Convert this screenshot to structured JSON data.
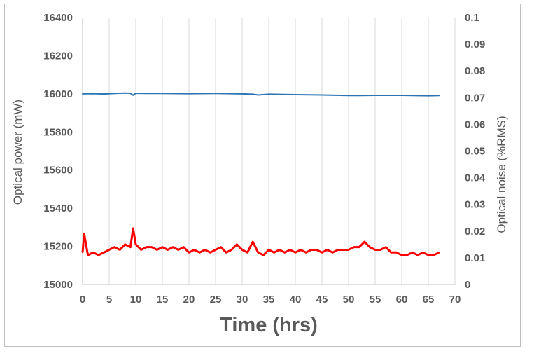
{
  "chart_data": {
    "type": "line",
    "title": "",
    "xlabel": "Time (hrs)",
    "ylabel_left": "Optical power (mW)",
    "ylabel_right": "Optical noise (%RMS)",
    "xlim": [
      0,
      70
    ],
    "ylim_left": [
      15000,
      16400
    ],
    "ylim_right": [
      0,
      0.1
    ],
    "x_ticks": [
      "0",
      "5",
      "10",
      "15",
      "20",
      "25",
      "30",
      "35",
      "40",
      "45",
      "50",
      "55",
      "60",
      "65",
      "70"
    ],
    "y_left_ticks": [
      "15000",
      "15200",
      "15400",
      "15600",
      "15800",
      "16000",
      "16200",
      "16400"
    ],
    "y_right_ticks": [
      "0",
      "0.01",
      "0.02",
      "0.03",
      "0.04",
      "0.05",
      "0.06",
      "0.07",
      "0.08",
      "0.09",
      "0.1"
    ],
    "grid": "vertical",
    "legend": "none",
    "series": [
      {
        "axis": "left",
        "color": "#2e75b6",
        "x": [
          0,
          2,
          4,
          6,
          8,
          9,
          9.5,
          10,
          12,
          15,
          20,
          25,
          30,
          32,
          33,
          35,
          40,
          45,
          50,
          52,
          55,
          60,
          65,
          67
        ],
        "y": [
          16000,
          16001,
          15999,
          16002,
          16004,
          16003,
          15993,
          16003,
          16002,
          16002,
          16001,
          16002,
          16000,
          15998,
          15994,
          15998,
          15996,
          15994,
          15991,
          15991,
          15992,
          15992,
          15990,
          15991
        ]
      },
      {
        "axis": "right",
        "color": "#ff0000",
        "x": [
          0,
          0.3,
          1,
          2,
          3,
          4,
          5,
          6,
          7,
          8,
          9,
          9.5,
          10,
          11,
          12,
          13,
          14,
          15,
          16,
          17,
          18,
          19,
          20,
          21,
          22,
          23,
          24,
          25,
          26,
          27,
          28,
          29,
          30,
          31,
          32,
          33,
          34,
          35,
          36,
          37,
          38,
          39,
          40,
          41,
          42,
          43,
          44,
          45,
          46,
          47,
          48,
          49,
          50,
          51,
          52,
          53,
          54,
          55,
          56,
          57,
          58,
          59,
          60,
          61,
          62,
          63,
          64,
          65,
          66,
          67
        ],
        "y": [
          0.012,
          0.019,
          0.011,
          0.012,
          0.011,
          0.012,
          0.013,
          0.014,
          0.013,
          0.015,
          0.014,
          0.021,
          0.015,
          0.013,
          0.014,
          0.014,
          0.013,
          0.014,
          0.013,
          0.014,
          0.013,
          0.014,
          0.012,
          0.013,
          0.012,
          0.013,
          0.012,
          0.013,
          0.014,
          0.012,
          0.013,
          0.015,
          0.013,
          0.012,
          0.016,
          0.012,
          0.011,
          0.013,
          0.012,
          0.013,
          0.012,
          0.013,
          0.012,
          0.013,
          0.012,
          0.013,
          0.013,
          0.012,
          0.013,
          0.012,
          0.013,
          0.013,
          0.013,
          0.014,
          0.014,
          0.016,
          0.014,
          0.013,
          0.013,
          0.014,
          0.012,
          0.012,
          0.011,
          0.011,
          0.012,
          0.011,
          0.012,
          0.011,
          0.011,
          0.012
        ]
      }
    ]
  }
}
